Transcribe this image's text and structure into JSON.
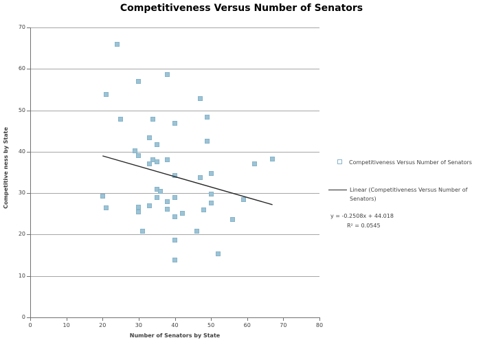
{
  "title": "Competitiveness Versus Number of Senators",
  "legend": {
    "series_label": "Competitiveness Versus Number of Senators",
    "trendline_label": "Linear (Competitiveness Versus Number of Senators)"
  },
  "equation": {
    "line1": "y = -0.2508x + 44.018",
    "line2": "R² = 0.0545"
  },
  "chart_data": {
    "type": "scatter",
    "title": "Competitiveness Versus Number of Senators",
    "xlabel": "Number of Senators by State",
    "ylabel": "Competitive ness  by State",
    "xlim": [
      0,
      80
    ],
    "ylim": [
      0,
      70
    ],
    "x_ticks": [
      0,
      10,
      20,
      30,
      40,
      50,
      60,
      70,
      80
    ],
    "y_ticks": [
      0,
      10,
      20,
      30,
      40,
      50,
      60,
      70
    ],
    "grid": "horizontal",
    "legend_position": "right",
    "marker_color": "#9cc3d5",
    "marker_border_color": "#86b3c9",
    "trendline_color": "#262626",
    "points": [
      [
        24,
        66
      ],
      [
        38,
        58.7
      ],
      [
        30,
        57
      ],
      [
        21,
        53.9
      ],
      [
        47,
        52.9
      ],
      [
        49,
        48.4
      ],
      [
        34,
        47.9
      ],
      [
        25,
        47.8
      ],
      [
        40,
        46.8
      ],
      [
        33,
        43.3
      ],
      [
        49,
        42.5
      ],
      [
        35,
        41.8
      ],
      [
        29,
        40.3
      ],
      [
        30,
        39
      ],
      [
        67,
        38.3
      ],
      [
        34,
        38.1
      ],
      [
        38,
        38.1
      ],
      [
        35,
        37.5
      ],
      [
        33,
        37
      ],
      [
        62,
        37
      ],
      [
        50,
        34.8
      ],
      [
        40,
        34.2
      ],
      [
        47,
        33.7
      ],
      [
        35,
        30.9
      ],
      [
        36,
        30.4
      ],
      [
        50,
        29.7
      ],
      [
        20,
        29.2
      ],
      [
        35,
        28.9
      ],
      [
        40,
        28.9
      ],
      [
        59,
        28.5
      ],
      [
        38,
        27.9
      ],
      [
        50,
        27.7
      ],
      [
        33,
        27
      ],
      [
        30,
        26.7
      ],
      [
        21,
        26.5
      ],
      [
        38,
        26.2
      ],
      [
        48,
        26
      ],
      [
        30,
        25.5
      ],
      [
        42,
        25.2
      ],
      [
        40,
        24.3
      ],
      [
        56,
        23.7
      ],
      [
        31,
        20.9
      ],
      [
        46,
        20.9
      ],
      [
        40,
        18.6
      ],
      [
        52,
        15.4
      ],
      [
        40,
        13.9
      ]
    ],
    "trendline": {
      "slope": -0.2508,
      "intercept": 44.018,
      "x_start": 20,
      "x_end": 67,
      "r_squared": 0.0545
    }
  }
}
